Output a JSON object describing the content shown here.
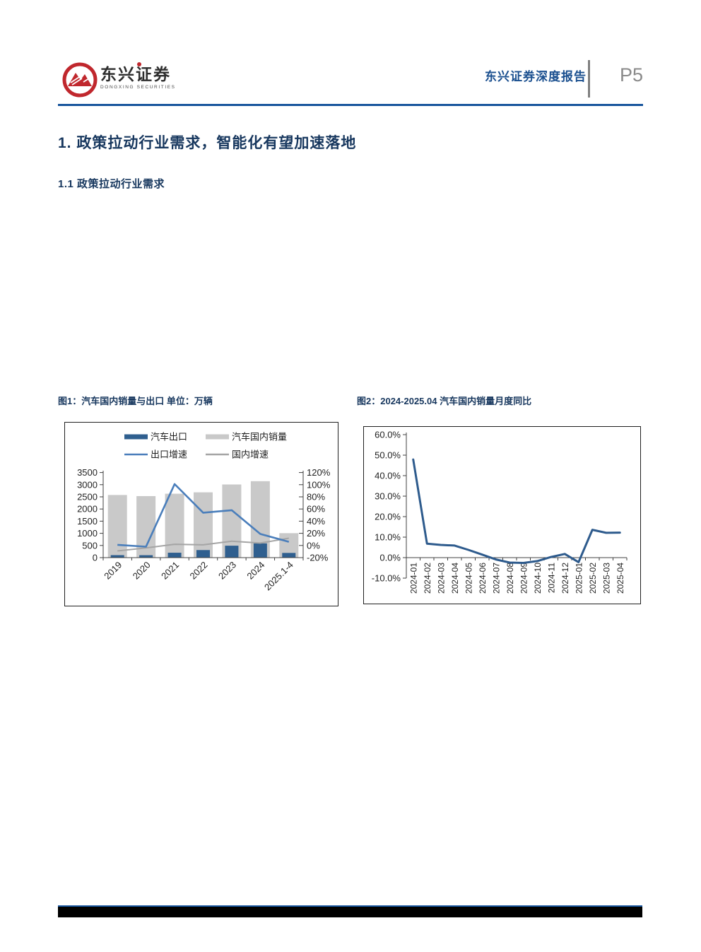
{
  "header": {
    "brand_name": "东兴证券",
    "brand_sub": "DONGXING SECURITIES",
    "report_type": "东兴证券深度报告",
    "page_label": "P5"
  },
  "headings": {
    "h1": "1. 政策拉动行业需求，智能化有望加速落地",
    "h2": "1.1 政策拉动行业需求"
  },
  "figures": {
    "fig1_title": "图1：汽车国内销量与出口 单位：万辆",
    "fig2_title": "图2：2024-2025.04 汽车国内销量月度同比"
  },
  "colors": {
    "accent_blue": "#16549C",
    "heading_navy": "#17375E",
    "header_title_blue": "#1a4f8f",
    "logo_red": "#C0272D",
    "page_label_gray": "#8a8a8a",
    "divider_gray": "#7f7f7f",
    "axis_black": "#404040",
    "tick_text": "#1f1f1f"
  },
  "chart_data": [
    {
      "type": "bar",
      "title": "汽车国内销量与出口",
      "unit": "万辆",
      "categories": [
        "2019",
        "2020",
        "2021",
        "2022",
        "2023",
        "2024",
        "2025.1-4"
      ],
      "series": [
        {
          "name": "汽车出口",
          "kind": "bar",
          "axis": "left",
          "color": "#2F5F8F",
          "values": [
            102,
            100,
            202,
            311,
            491,
            586,
            194
          ]
        },
        {
          "name": "汽车国内销量",
          "kind": "bar",
          "axis": "left",
          "color": "#C9C9C9",
          "values": [
            2577,
            2531,
            2628,
            2686,
            3009,
            3144,
            1006
          ]
        },
        {
          "name": "出口增速",
          "kind": "line",
          "axis": "right",
          "color": "#4A7EBB",
          "values": [
            1,
            -2,
            101,
            54,
            58,
            19,
            6
          ]
        },
        {
          "name": "国内增速",
          "kind": "line",
          "axis": "right",
          "color": "#A5A5A5",
          "values": [
            -9,
            -4,
            2,
            1,
            7,
            4,
            12
          ]
        }
      ],
      "left_axis": {
        "min": 0,
        "max": 3500,
        "step": 500,
        "ticks": [
          "0",
          "500",
          "1000",
          "1500",
          "2000",
          "2500",
          "3000",
          "3500"
        ]
      },
      "right_axis": {
        "min": -20,
        "max": 120,
        "step": 20,
        "ticks": [
          "-20%",
          "0%",
          "20%",
          "40%",
          "60%",
          "80%",
          "100%",
          "120%"
        ]
      },
      "legend_position": "top",
      "grid": false
    },
    {
      "type": "line",
      "title": "2024-2025.04 汽车国内销量月度同比",
      "categories": [
        "2024-01",
        "2024-02",
        "2024-03",
        "2024-04",
        "2024-05",
        "2024-06",
        "2024-07",
        "2024-08",
        "2024-09",
        "2024-10",
        "2024-11",
        "2024-12",
        "2025-01",
        "2025-02",
        "2025-03",
        "2025-04"
      ],
      "values": [
        47.9,
        6.8,
        6.2,
        5.9,
        3.8,
        1.5,
        -0.9,
        -2.4,
        -2.6,
        -1.7,
        0.3,
        1.8,
        -2.2,
        13.6,
        12.1,
        12.2
      ],
      "color": "#2E5B8D",
      "ylabel": "",
      "y_axis": {
        "min": -10,
        "max": 60,
        "step": 10,
        "ticks": [
          "60.0%",
          "50.0%",
          "40.0%",
          "30.0%",
          "20.0%",
          "10.0%",
          "0.0%",
          "-10.0%"
        ]
      },
      "legend_position": "none",
      "grid": false
    }
  ]
}
